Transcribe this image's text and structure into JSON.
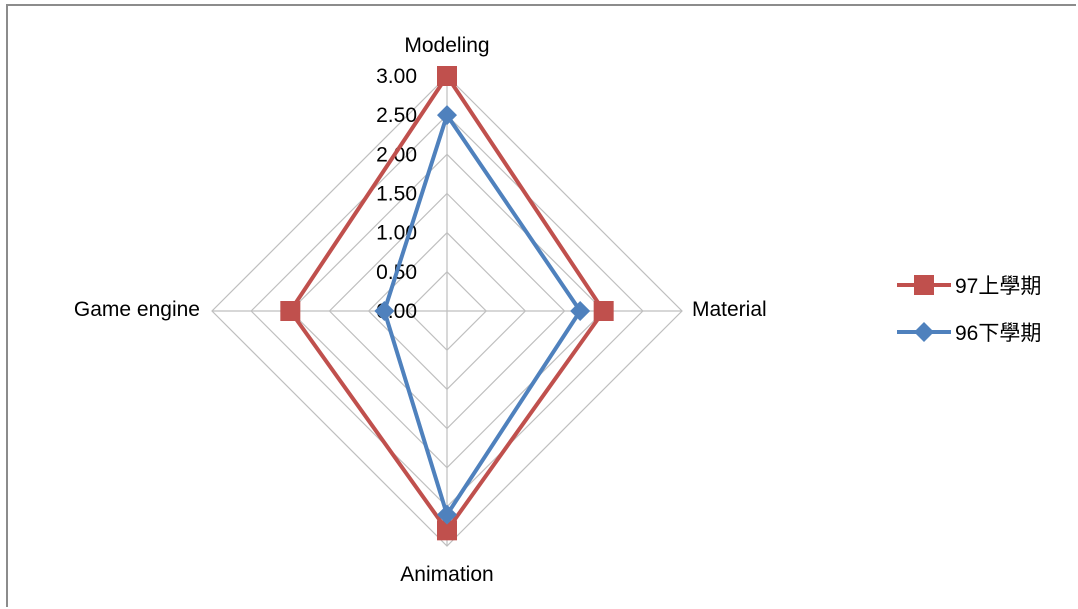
{
  "chart_data": {
    "type": "radar",
    "axes": [
      "Modeling",
      "Material",
      "Animation",
      "Game engine"
    ],
    "r_ticks": [
      "0.00",
      "0.50",
      "1.00",
      "1.50",
      "2.00",
      "2.50",
      "3.00"
    ],
    "rlim": [
      0,
      3
    ],
    "grid": true,
    "legend_position": "right",
    "series": [
      {
        "name": "97上學期",
        "values": [
          3.0,
          2.0,
          2.8,
          2.0
        ],
        "color": "#C0504D",
        "marker": "square"
      },
      {
        "name": "96下學期",
        "values": [
          2.5,
          1.7,
          2.6,
          0.8
        ],
        "color": "#4F81BD",
        "marker": "diamond"
      }
    ]
  }
}
